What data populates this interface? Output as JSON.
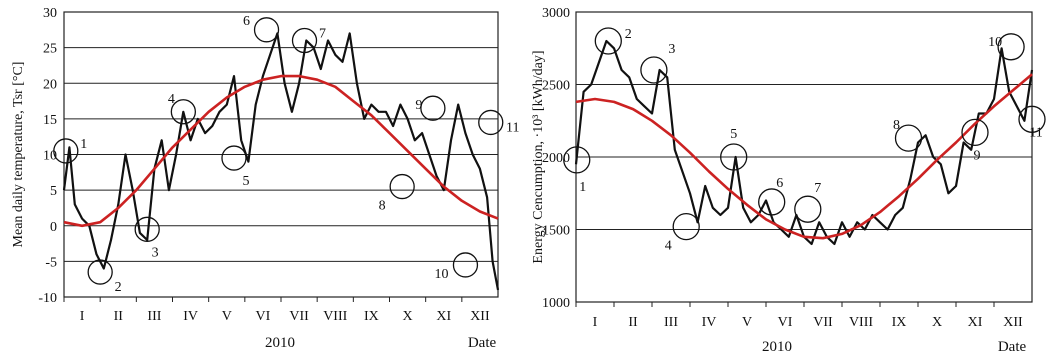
{
  "chart_data": [
    {
      "type": "line",
      "xlabel": "2010",
      "date_label": "Date",
      "ylabel": "Mean daily temperature, Tsr [°C]",
      "ylim": [
        -10,
        30
      ],
      "yticks": [
        "30",
        "25",
        "20",
        "15",
        "10",
        "5",
        "0",
        "-5",
        "-10"
      ],
      "ytick_values": [
        30,
        25,
        20,
        15,
        10,
        5,
        0,
        -5,
        -10
      ],
      "grid": true,
      "months": [
        "I",
        "II",
        "III",
        "IV",
        "V",
        "VI",
        "VII",
        "VIII",
        "IX",
        "X",
        "XI",
        "XII"
      ],
      "series": [
        {
          "color": "#111111",
          "x_month": [
            0.0,
            0.15,
            0.3,
            0.5,
            0.7,
            0.9,
            1.1,
            1.3,
            1.5,
            1.7,
            1.9,
            2.1,
            2.3,
            2.5,
            2.7,
            2.9,
            3.1,
            3.3,
            3.5,
            3.7,
            3.9,
            4.1,
            4.3,
            4.5,
            4.7,
            4.9,
            5.1,
            5.3,
            5.5,
            5.7,
            5.9,
            6.1,
            6.3,
            6.5,
            6.7,
            6.9,
            7.1,
            7.3,
            7.5,
            7.7,
            7.9,
            8.1,
            8.3,
            8.5,
            8.7,
            8.9,
            9.1,
            9.3,
            9.5,
            9.7,
            9.9,
            10.1,
            10.3,
            10.5,
            10.7,
            10.9,
            11.1,
            11.3,
            11.5,
            11.7,
            11.85,
            12.0
          ],
          "y": [
            5,
            11,
            3,
            1,
            0,
            -4,
            -6,
            -2,
            3,
            10,
            5,
            -1,
            -2,
            8,
            12,
            5,
            10,
            16,
            12,
            15,
            13,
            14,
            16,
            17,
            21,
            12,
            9,
            17,
            21,
            24,
            27,
            20,
            16,
            20,
            26,
            25,
            22,
            26,
            24,
            23,
            27,
            20,
            15,
            17,
            16,
            16,
            14,
            17,
            15,
            12,
            13,
            10,
            7,
            5,
            12,
            17,
            13,
            10,
            8,
            4,
            -5,
            -9
          ]
        },
        {
          "color": "#cc2222",
          "x_month": [
            0.0,
            0.5,
            1.0,
            1.5,
            2.0,
            2.5,
            3.0,
            3.5,
            4.0,
            4.5,
            5.0,
            5.5,
            6.0,
            6.5,
            7.0,
            7.5,
            8.0,
            8.5,
            9.0,
            9.5,
            10.0,
            10.5,
            11.0,
            11.5,
            12.0
          ],
          "y": [
            0.5,
            0,
            0.5,
            2.5,
            5,
            8,
            11,
            13.5,
            16,
            18,
            19.5,
            20.5,
            21,
            21,
            20.5,
            19.5,
            17.5,
            15.5,
            13,
            10.5,
            8,
            5.5,
            3.5,
            2,
            1
          ]
        }
      ],
      "annotations": [
        {
          "label": "1",
          "x_month": 0.05,
          "y": 10.5
        },
        {
          "label": "2",
          "x_month": 1.0,
          "y": -6.5
        },
        {
          "label": "3",
          "x_month": 2.3,
          "y": -0.5
        },
        {
          "label": "4",
          "x_month": 3.3,
          "y": 16
        },
        {
          "label": "5",
          "x_month": 4.7,
          "y": 9.5
        },
        {
          "label": "6",
          "x_month": 5.6,
          "y": 27.5
        },
        {
          "label": "7",
          "x_month": 6.65,
          "y": 26
        },
        {
          "label": "8",
          "x_month": 9.35,
          "y": 5.5
        },
        {
          "label": "9",
          "x_month": 10.2,
          "y": 16.5
        },
        {
          "label": "10",
          "x_month": 11.1,
          "y": -5.5
        },
        {
          "label": "11",
          "x_month": 11.8,
          "y": 14.5
        }
      ]
    },
    {
      "type": "line",
      "xlabel": "2010",
      "date_label": "Date",
      "ylabel": "Energy Cencumption, ·10³ [kWh/day]",
      "ylim": [
        1000,
        3000
      ],
      "yticks": [
        "3000",
        "2500",
        "2000",
        "1500",
        "1000"
      ],
      "ytick_values": [
        3000,
        2500,
        2000,
        1500,
        1000
      ],
      "grid": true,
      "months": [
        "I",
        "II",
        "III",
        "IV",
        "V",
        "VI",
        "VII",
        "VIII",
        "IX",
        "X",
        "XI",
        "XII"
      ],
      "series": [
        {
          "color": "#111111",
          "x_month": [
            0.0,
            0.2,
            0.4,
            0.6,
            0.8,
            1.0,
            1.2,
            1.4,
            1.6,
            1.8,
            2.0,
            2.2,
            2.4,
            2.6,
            2.8,
            3.0,
            3.2,
            3.4,
            3.6,
            3.8,
            4.0,
            4.2,
            4.4,
            4.6,
            4.8,
            5.0,
            5.2,
            5.4,
            5.6,
            5.8,
            6.0,
            6.2,
            6.4,
            6.6,
            6.8,
            7.0,
            7.2,
            7.4,
            7.6,
            7.8,
            8.0,
            8.2,
            8.4,
            8.6,
            8.8,
            9.0,
            9.2,
            9.4,
            9.6,
            9.8,
            10.0,
            10.2,
            10.4,
            10.6,
            10.8,
            11.0,
            11.2,
            11.4,
            11.6,
            11.8,
            12.0
          ],
          "y": [
            1950,
            2450,
            2500,
            2650,
            2800,
            2750,
            2600,
            2550,
            2400,
            2350,
            2300,
            2600,
            2550,
            2050,
            1900,
            1750,
            1550,
            1800,
            1650,
            1600,
            1650,
            2000,
            1650,
            1550,
            1600,
            1700,
            1550,
            1500,
            1450,
            1600,
            1450,
            1400,
            1550,
            1450,
            1400,
            1550,
            1450,
            1550,
            1500,
            1600,
            1550,
            1500,
            1600,
            1650,
            1850,
            2100,
            2150,
            2000,
            1950,
            1750,
            1800,
            2100,
            2050,
            2300,
            2300,
            2400,
            2750,
            2450,
            2350,
            2250,
            2600
          ]
        },
        {
          "color": "#cc2222",
          "x_month": [
            0.0,
            0.5,
            1.0,
            1.5,
            2.0,
            2.5,
            3.0,
            3.5,
            4.0,
            4.5,
            5.0,
            5.5,
            6.0,
            6.5,
            7.0,
            7.5,
            8.0,
            8.5,
            9.0,
            9.5,
            10.0,
            10.5,
            11.0,
            11.5,
            12.0
          ],
          "y": [
            2380,
            2400,
            2380,
            2330,
            2250,
            2150,
            2030,
            1900,
            1780,
            1670,
            1570,
            1500,
            1450,
            1440,
            1470,
            1530,
            1620,
            1730,
            1850,
            1980,
            2100,
            2230,
            2350,
            2460,
            2570
          ]
        }
      ],
      "annotations": [
        {
          "label": "1",
          "x_month": 0.02,
          "y": 1980
        },
        {
          "label": "2",
          "x_month": 0.85,
          "y": 2800
        },
        {
          "label": "3",
          "x_month": 2.05,
          "y": 2600
        },
        {
          "label": "4",
          "x_month": 2.9,
          "y": 1520
        },
        {
          "label": "5",
          "x_month": 4.15,
          "y": 2000
        },
        {
          "label": "6",
          "x_month": 5.15,
          "y": 1690
        },
        {
          "label": "7",
          "x_month": 6.1,
          "y": 1640
        },
        {
          "label": "8",
          "x_month": 8.75,
          "y": 2130
        },
        {
          "label": "9",
          "x_month": 10.5,
          "y": 2170
        },
        {
          "label": "10",
          "x_month": 11.45,
          "y": 2760
        },
        {
          "label": "11",
          "x_month": 12.0,
          "y": 2260
        }
      ]
    }
  ]
}
